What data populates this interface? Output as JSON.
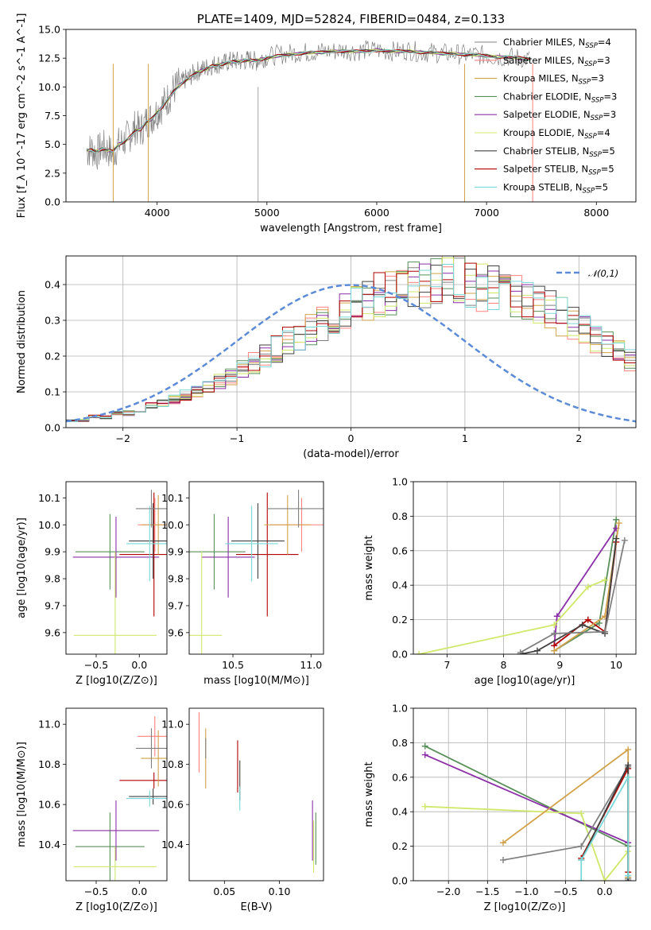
{
  "figure": {
    "title": "PLATE=1409, MJD=52824, FIBERID=0484, z=0.133"
  },
  "models": [
    {
      "key": "chabrier_miles",
      "label": "Chabrier MILES, N_SSP=4",
      "color": "#808080"
    },
    {
      "key": "salpeter_miles",
      "label": "Salpeter MILES, N_SSP=3",
      "color": "#ff8080"
    },
    {
      "key": "kroupa_miles",
      "label": "Kroupa MILES, N_SSP=3",
      "color": "#d2a24b"
    },
    {
      "key": "chabrier_elodie",
      "label": "Chabrier ELODIE, N_SSP=3",
      "color": "#5a8f5a"
    },
    {
      "key": "salpeter_elodie",
      "label": "Salpeter ELODIE, N_SSP=3",
      "color": "#8b2fa8"
    },
    {
      "key": "kroupa_elodie",
      "label": "Kroupa ELODIE, N_SSP=4",
      "color": "#cfe86a"
    },
    {
      "key": "chabrier_stelib",
      "label": "Chabrier STELIB, N_SSP=5",
      "color": "#404040"
    },
    {
      "key": "salpeter_stelib",
      "label": "Salpeter STELIB, N_SSP=5",
      "color": "#b00000"
    },
    {
      "key": "kroupa_stelib",
      "label": "Kroupa STELIB, N_SSP=5",
      "color": "#7ad7d7"
    }
  ],
  "chart_data": [
    {
      "id": "spectrum",
      "type": "line",
      "title": "PLATE=1409, MJD=52824, FIBERID=0484, z=0.133",
      "xlabel": "wavelength [Angstrom, rest frame]",
      "ylabel": "Flux [f_λ 10^-17 erg cm^-2 s^-1 A^-1]",
      "xlim": [
        3170,
        8360
      ],
      "ylim": [
        0,
        15
      ],
      "xticks": [
        4000,
        5000,
        6000,
        7000,
        8000
      ],
      "yticks": [
        0.0,
        2.5,
        5.0,
        7.5,
        10.0,
        12.5,
        15.0
      ],
      "grid": false,
      "legend": "right",
      "data_trace": {
        "color": "#808080",
        "x": [
          3360,
          3400,
          3450,
          3500,
          3550,
          3600,
          3650,
          3700,
          3750,
          3800,
          3850,
          3900,
          3950,
          4000,
          4050,
          4100,
          4150,
          4200,
          4250,
          4300,
          4350,
          4400,
          4450,
          4500,
          4550,
          4600,
          4650,
          4700,
          4750,
          4800,
          4850,
          4900,
          4950,
          5000,
          5100,
          5200,
          5300,
          5400,
          5500,
          5600,
          5700,
          5800,
          5900,
          6000,
          6100,
          6200,
          6300,
          6400,
          6500,
          6600,
          6700,
          6800,
          6900,
          7000,
          7100,
          7200,
          7300,
          7400
        ],
        "y": [
          4.4,
          4.6,
          4.2,
          4.8,
          4.5,
          4.2,
          5.0,
          5.3,
          5.8,
          6.5,
          6.2,
          7.0,
          7.3,
          7.9,
          8.4,
          9.0,
          9.8,
          10.2,
          10.6,
          10.9,
          11.3,
          11.5,
          11.7,
          11.9,
          12.0,
          12.0,
          12.2,
          12.3,
          12.2,
          12.3,
          12.4,
          12.2,
          12.5,
          12.6,
          12.8,
          12.9,
          13.0,
          13.0,
          13.1,
          13.1,
          13.2,
          13.1,
          13.2,
          13.2,
          13.1,
          13.1,
          13.2,
          13.0,
          13.0,
          12.9,
          12.9,
          12.8,
          12.8,
          12.7,
          12.6,
          12.6,
          12.5,
          12.4
        ]
      },
      "model_trace": {
        "x": [
          3360,
          3400,
          3450,
          3500,
          3550,
          3600,
          3650,
          3700,
          3750,
          3800,
          3850,
          3900,
          3950,
          4000,
          4050,
          4100,
          4150,
          4200,
          4250,
          4300,
          4350,
          4400,
          4450,
          4500,
          4550,
          4600,
          4650,
          4700,
          4750,
          4800,
          4850,
          4900,
          4950,
          5000,
          5100,
          5200,
          5300,
          5400,
          5500,
          5600,
          5700,
          5800,
          5900,
          6000,
          6100,
          6200,
          6300,
          6400,
          6500,
          6600,
          6700,
          6800,
          6900,
          7000,
          7100,
          7200,
          7300,
          7400
        ],
        "y": [
          4.5,
          4.5,
          4.4,
          4.6,
          4.5,
          4.4,
          5.0,
          5.2,
          5.6,
          6.2,
          6.3,
          6.9,
          7.2,
          7.8,
          8.3,
          8.9,
          9.6,
          10.1,
          10.5,
          10.8,
          11.2,
          11.4,
          11.6,
          11.8,
          11.9,
          12.0,
          12.1,
          12.2,
          12.2,
          12.3,
          12.3,
          12.3,
          12.4,
          12.5,
          12.7,
          12.8,
          12.9,
          13.0,
          13.0,
          13.1,
          13.1,
          13.1,
          13.1,
          13.2,
          13.1,
          13.1,
          13.1,
          13.0,
          13.0,
          12.9,
          12.9,
          12.8,
          12.8,
          12.7,
          12.6,
          12.6,
          12.5,
          12.4
        ]
      }
    },
    {
      "id": "residuals",
      "type": "step",
      "xlabel": "(data-model)/error",
      "ylabel": "Normed distribution",
      "xlim": [
        -2.5,
        2.5
      ],
      "ylim": [
        0,
        0.48
      ],
      "xticks": [
        -2,
        -1,
        0,
        1,
        2
      ],
      "yticks": [
        0.0,
        0.1,
        0.2,
        0.3,
        0.4
      ],
      "grid": true,
      "legend": "top-right",
      "legend_label": "𝒩(0,1)",
      "gaussian": {
        "mu": 0,
        "sigma": 1,
        "color": "#5b8ad8"
      },
      "bin_width": 0.1,
      "bins_left": -2.5,
      "hist_values": [
        0.02,
        0.02,
        0.03,
        0.03,
        0.04,
        0.04,
        0.05,
        0.06,
        0.07,
        0.08,
        0.09,
        0.1,
        0.11,
        0.13,
        0.14,
        0.16,
        0.18,
        0.2,
        0.22,
        0.24,
        0.25,
        0.27,
        0.29,
        0.31,
        0.33,
        0.35,
        0.36,
        0.37,
        0.38,
        0.39,
        0.4,
        0.4,
        0.41,
        0.42,
        0.42,
        0.4,
        0.39,
        0.39,
        0.38,
        0.37,
        0.36,
        0.34,
        0.33,
        0.31,
        0.29,
        0.27,
        0.25,
        0.23,
        0.21,
        0.19,
        0.17,
        0.15,
        0.13,
        0.11,
        0.1,
        0.09,
        0.07,
        0.06,
        0.05,
        0.04,
        0.04,
        0.03,
        0.03,
        0.02,
        0.02
      ]
    },
    {
      "id": "z-age",
      "type": "errorbar",
      "xlabel": "Z [log10(Z/Z⊙)]",
      "ylabel": "age [log10(age/yr)]",
      "xlim": [
        -0.85,
        0.32
      ],
      "ylim": [
        9.52,
        10.16
      ],
      "xticks": [
        -0.5,
        0.0
      ],
      "yticks": [
        9.6,
        9.7,
        9.8,
        9.9,
        10.0,
        10.1
      ],
      "points": [
        {
          "model": "chabrier_elodie",
          "x": -0.34,
          "xerr": 0.4,
          "y": 9.9,
          "yerr": 0.14
        },
        {
          "model": "salpeter_elodie",
          "x": -0.27,
          "xerr": 0.5,
          "y": 9.88,
          "yerr": 0.15
        },
        {
          "model": "kroupa_elodie",
          "x": -0.28,
          "xerr": 0.48,
          "y": 9.59,
          "yerr": 0.31
        },
        {
          "model": "salpeter_stelib",
          "x": 0.17,
          "xerr": 0.4,
          "y": 9.89,
          "yerr": 0.23
        },
        {
          "model": "salpeter_miles",
          "x": 0.18,
          "xerr": 0.2,
          "y": 10.0,
          "yerr": 0.1
        },
        {
          "model": "kroupa_miles",
          "x": 0.22,
          "xerr": 0.2,
          "y": 10.0,
          "yerr": 0.11
        },
        {
          "model": "chabrier_stelib",
          "x": 0.16,
          "xerr": 0.28,
          "y": 9.94,
          "yerr": 0.14
        },
        {
          "model": "kroupa_stelib",
          "x": 0.12,
          "xerr": 0.27,
          "y": 9.93,
          "yerr": 0.14
        },
        {
          "model": "chabrier_miles",
          "x": 0.14,
          "xerr": 0.18,
          "y": 10.06,
          "yerr": 0.07
        }
      ]
    },
    {
      "id": "mass-age",
      "type": "errorbar",
      "xlabel": "mass [log10(M/M⊙)]",
      "ylabel": "",
      "xlim": [
        10.22,
        11.08
      ],
      "ylim": [
        9.52,
        10.16
      ],
      "xticks": [
        10.5,
        11.0
      ],
      "yticks": [
        9.6,
        9.7,
        9.8,
        9.9,
        10.0,
        10.1
      ],
      "points": [
        {
          "model": "chabrier_elodie",
          "x": 10.38,
          "xerr": 0.2,
          "y": 9.9,
          "yerr": 0.14
        },
        {
          "model": "salpeter_elodie",
          "x": 10.47,
          "xerr": 0.17,
          "y": 9.88,
          "yerr": 0.15
        },
        {
          "model": "kroupa_elodie",
          "x": 10.3,
          "xerr": 0.13,
          "y": 9.59,
          "yerr": 0.31
        },
        {
          "model": "salpeter_stelib",
          "x": 10.72,
          "xerr": 0.2,
          "y": 9.89,
          "yerr": 0.23
        },
        {
          "model": "salpeter_miles",
          "x": 10.94,
          "xerr": 0.2,
          "y": 10.0,
          "yerr": 0.1
        },
        {
          "model": "kroupa_miles",
          "x": 10.85,
          "xerr": 0.15,
          "y": 10.0,
          "yerr": 0.11
        },
        {
          "model": "chabrier_stelib",
          "x": 10.66,
          "xerr": 0.17,
          "y": 9.94,
          "yerr": 0.14
        },
        {
          "model": "kroupa_stelib",
          "x": 10.62,
          "xerr": 0.17,
          "y": 9.93,
          "yerr": 0.14
        },
        {
          "model": "chabrier_miles",
          "x": 10.92,
          "xerr": 0.2,
          "y": 10.06,
          "yerr": 0.07
        }
      ]
    },
    {
      "id": "age-weight",
      "type": "line",
      "xlabel": "age [log10(age/yr)]",
      "ylabel": "mass weight",
      "xlim": [
        6.4,
        10.35
      ],
      "ylim": [
        0,
        1.0
      ],
      "xticks": [
        7,
        8,
        9,
        10
      ],
      "yticks": [
        0.0,
        0.2,
        0.4,
        0.6,
        0.8,
        1.0
      ],
      "grid": true,
      "series": [
        {
          "model": "chabrier_elodie",
          "x": [
            8.9,
            9.7,
            10.0
          ],
          "y": [
            0.02,
            0.18,
            0.78
          ]
        },
        {
          "model": "salpeter_elodie",
          "x": [
            8.9,
            8.95,
            10.0
          ],
          "y": [
            0.05,
            0.22,
            0.73
          ]
        },
        {
          "model": "kroupa_elodie",
          "x": [
            6.5,
            8.9,
            9.5,
            9.8
          ],
          "y": [
            0.0,
            0.17,
            0.39,
            0.43
          ]
        },
        {
          "model": "salpeter_stelib",
          "x": [
            8.9,
            9.5,
            9.8,
            10.0
          ],
          "y": [
            0.05,
            0.2,
            0.13,
            0.65
          ]
        },
        {
          "model": "kroupa_miles",
          "x": [
            8.9,
            9.8,
            10.05
          ],
          "y": [
            0.02,
            0.22,
            0.76
          ]
        },
        {
          "model": "chabrier_stelib",
          "x": [
            8.3,
            8.6,
            9.4,
            9.8,
            10.0
          ],
          "y": [
            0.0,
            0.02,
            0.17,
            0.12,
            0.67
          ]
        },
        {
          "model": "chabrier_miles",
          "x": [
            8.3,
            8.9,
            9.8,
            10.15
          ],
          "y": [
            0.01,
            0.12,
            0.13,
            0.66
          ]
        }
      ]
    },
    {
      "id": "z-mass",
      "type": "errorbar",
      "xlabel": "Z [log10(Z/Z⊙)]",
      "ylabel": "mass [log10(M/M⊙)]",
      "xlim": [
        -0.85,
        0.32
      ],
      "ylim": [
        10.22,
        11.08
      ],
      "xticks": [
        -0.5,
        0.0
      ],
      "yticks": [
        10.4,
        10.6,
        10.8,
        11.0
      ],
      "points": [
        {
          "model": "chabrier_elodie",
          "x": -0.34,
          "xerr": 0.4,
          "y": 10.39,
          "yerr": 0.17
        },
        {
          "model": "salpeter_elodie",
          "x": -0.27,
          "xerr": 0.5,
          "y": 10.47,
          "yerr": 0.15
        },
        {
          "model": "kroupa_elodie",
          "x": -0.28,
          "xerr": 0.48,
          "y": 10.29,
          "yerr": 0.1
        },
        {
          "model": "salpeter_stelib",
          "x": 0.17,
          "xerr": 0.4,
          "y": 10.72,
          "yerr": 0.04
        },
        {
          "model": "salpeter_miles",
          "x": 0.18,
          "xerr": 0.2,
          "y": 10.94,
          "yerr": 0.1
        },
        {
          "model": "kroupa_miles",
          "x": 0.22,
          "xerr": 0.2,
          "y": 10.83,
          "yerr": 0.14
        },
        {
          "model": "chabrier_stelib",
          "x": 0.16,
          "xerr": 0.28,
          "y": 10.64,
          "yerr": 0.04
        },
        {
          "model": "kroupa_stelib",
          "x": 0.12,
          "xerr": 0.27,
          "y": 10.63,
          "yerr": 0.04
        },
        {
          "model": "chabrier_miles",
          "x": 0.14,
          "xerr": 0.18,
          "y": 10.88,
          "yerr": 0.1
        }
      ]
    },
    {
      "id": "ebv-mass",
      "type": "errorbar",
      "xlabel": "E(B-V)",
      "ylabel": "",
      "xlim": [
        0.018,
        0.14
      ],
      "ylim": [
        10.22,
        11.08
      ],
      "xticks": [
        0.05,
        0.1
      ],
      "yticks": [
        10.4,
        10.6,
        10.8,
        11.0
      ],
      "points": [
        {
          "model": "salpeter_miles",
          "x": 0.027,
          "xerr": 0,
          "y": 10.91,
          "yerr": 0.15
        },
        {
          "model": "kroupa_miles",
          "x": 0.033,
          "xerr": 0,
          "y": 10.83,
          "yerr": 0.15
        },
        {
          "model": "chabrier_miles",
          "x": 0.033,
          "xerr": 0,
          "y": 10.88,
          "yerr": 0.05
        },
        {
          "model": "salpeter_stelib",
          "x": 0.062,
          "xerr": 0,
          "y": 10.79,
          "yerr": 0.13
        },
        {
          "model": "chabrier_stelib",
          "x": 0.064,
          "xerr": 0,
          "y": 10.72,
          "yerr": 0.1
        },
        {
          "model": "kroupa_stelib",
          "x": 0.064,
          "xerr": 0,
          "y": 10.63,
          "yerr": 0.06
        },
        {
          "model": "salpeter_elodie",
          "x": 0.13,
          "xerr": 0,
          "y": 10.47,
          "yerr": 0.15
        },
        {
          "model": "kroupa_elodie",
          "x": 0.131,
          "xerr": 0,
          "y": 10.39,
          "yerr": 0.13
        },
        {
          "model": "chabrier_elodie",
          "x": 0.133,
          "xerr": 0,
          "y": 10.43,
          "yerr": 0.13
        }
      ]
    },
    {
      "id": "z-weight",
      "type": "line",
      "xlabel": "Z [log10(Z/Z⊙)]",
      "ylabel": "mass weight",
      "xlim": [
        -2.45,
        0.4
      ],
      "ylim": [
        0,
        1.0
      ],
      "xticks": [
        -2.0,
        -1.5,
        -1.0,
        -0.5,
        0.0
      ],
      "yticks": [
        0.0,
        0.2,
        0.4,
        0.6,
        0.8,
        1.0
      ],
      "grid": true,
      "series": [
        {
          "model": "chabrier_elodie",
          "x": [
            -2.3,
            0.3,
            0.3
          ],
          "y": [
            0.78,
            0.2,
            0.02
          ]
        },
        {
          "model": "salpeter_elodie",
          "x": [
            -2.3,
            0.3
          ],
          "y": [
            0.73,
            0.22
          ]
        },
        {
          "model": "kroupa_elodie",
          "x": [
            -2.3,
            -0.3,
            0.0,
            0.3
          ],
          "y": [
            0.43,
            0.39,
            0.0,
            0.17
          ]
        },
        {
          "model": "kroupa_miles",
          "x": [
            -1.3,
            0.3,
            0.3
          ],
          "y": [
            0.22,
            0.76,
            0.02
          ]
        },
        {
          "model": "chabrier_miles",
          "x": [
            -1.3,
            -0.3,
            0.3,
            0.3
          ],
          "y": [
            0.12,
            0.2,
            0.66,
            0.01
          ]
        },
        {
          "model": "salpeter_stelib",
          "x": [
            -0.3,
            0.3,
            0.3
          ],
          "y": [
            0.13,
            0.65,
            0.05
          ]
        },
        {
          "model": "chabrier_stelib",
          "x": [
            -0.3,
            0.3,
            0.3
          ],
          "y": [
            0.12,
            0.67,
            0.0
          ]
        },
        {
          "model": "kroupa_stelib",
          "x": [
            -0.3,
            -0.3,
            0.3,
            0.3
          ],
          "y": [
            0.0,
            0.12,
            0.6,
            0.03
          ]
        }
      ]
    }
  ]
}
